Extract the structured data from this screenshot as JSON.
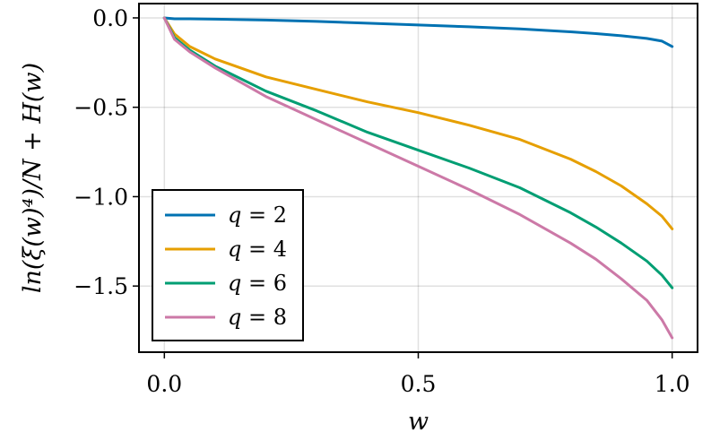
{
  "chart_data": {
    "type": "line",
    "title": "",
    "xlabel": "w",
    "ylabel": "ln(ξ(w)⁴)/N + H(w)",
    "xlim": [
      -0.05,
      1.05
    ],
    "ylim": [
      -1.87,
      0.08
    ],
    "xticks": [
      0.0,
      0.5,
      1.0
    ],
    "xtick_labels": [
      "0.0",
      "0.5",
      "1.0"
    ],
    "yticks": [
      0.0,
      -0.5,
      -1.0,
      -1.5
    ],
    "ytick_labels": [
      "0.0",
      "−0.5",
      "−1.0",
      "−1.5"
    ],
    "grid": true,
    "legend_position": "bottom-left",
    "series": [
      {
        "name": "q = 2",
        "label_var": "q",
        "label_val": "2",
        "color": "#0072b2",
        "x": [
          0,
          0.02,
          0.05,
          0.1,
          0.2,
          0.3,
          0.4,
          0.5,
          0.6,
          0.7,
          0.8,
          0.85,
          0.9,
          0.95,
          0.98,
          1.0
        ],
        "y": [
          0,
          -0.005,
          -0.005,
          -0.007,
          -0.012,
          -0.02,
          -0.03,
          -0.04,
          -0.05,
          -0.062,
          -0.078,
          -0.088,
          -0.1,
          -0.115,
          -0.13,
          -0.16
        ]
      },
      {
        "name": "q = 4",
        "label_var": "q",
        "label_val": "4",
        "color": "#e69f00",
        "x": [
          0,
          0.02,
          0.05,
          0.1,
          0.2,
          0.3,
          0.4,
          0.5,
          0.6,
          0.7,
          0.8,
          0.85,
          0.9,
          0.95,
          0.98,
          1.0
        ],
        "y": [
          0,
          -0.09,
          -0.16,
          -0.23,
          -0.33,
          -0.4,
          -0.47,
          -0.53,
          -0.6,
          -0.68,
          -0.79,
          -0.86,
          -0.94,
          -1.04,
          -1.11,
          -1.18
        ]
      },
      {
        "name": "q = 6",
        "label_var": "q",
        "label_val": "6",
        "color": "#009e73",
        "x": [
          0,
          0.02,
          0.05,
          0.1,
          0.2,
          0.3,
          0.4,
          0.5,
          0.6,
          0.7,
          0.8,
          0.85,
          0.9,
          0.95,
          0.98,
          1.0
        ],
        "y": [
          0,
          -0.11,
          -0.18,
          -0.27,
          -0.41,
          -0.52,
          -0.64,
          -0.74,
          -0.84,
          -0.95,
          -1.09,
          -1.17,
          -1.26,
          -1.36,
          -1.44,
          -1.51
        ]
      },
      {
        "name": "q = 8",
        "label_var": "q",
        "label_val": "8",
        "color": "#cc79a7",
        "x": [
          0,
          0.02,
          0.05,
          0.1,
          0.2,
          0.3,
          0.4,
          0.5,
          0.6,
          0.7,
          0.8,
          0.85,
          0.9,
          0.95,
          0.98,
          1.0
        ],
        "y": [
          0,
          -0.12,
          -0.19,
          -0.28,
          -0.44,
          -0.57,
          -0.7,
          -0.83,
          -0.96,
          -1.1,
          -1.26,
          -1.35,
          -1.46,
          -1.58,
          -1.69,
          -1.79
        ]
      }
    ]
  }
}
